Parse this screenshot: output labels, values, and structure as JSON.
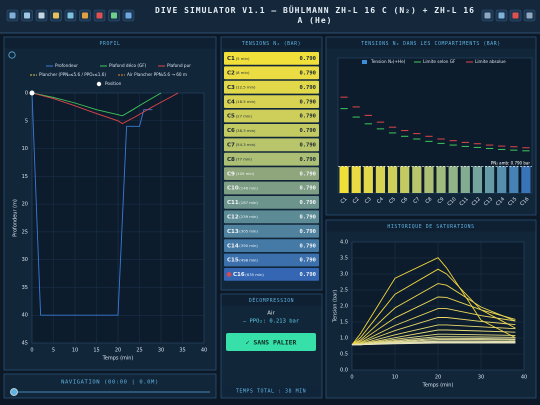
{
  "header": {
    "title": "DIVE SIMULATOR V1.1 — BÜHLMANN ZH-L 16 C (N₂) + ZH-L 16 A (He)"
  },
  "navigation": {
    "title": "NAVIGATION (00:00 | 0.0M)"
  },
  "tensions": {
    "title": "TENSIONS N₂ (BAR)",
    "rows": [
      {
        "name": "C1",
        "half_time": "(5 min)",
        "value": "0.790",
        "color": "#f2e03a"
      },
      {
        "name": "C2",
        "half_time": "(8 min)",
        "value": "0.790",
        "color": "#eadc42"
      },
      {
        "name": "C3",
        "half_time": "(12.5 min)",
        "value": "0.790",
        "color": "#e1d84a"
      },
      {
        "name": "C4",
        "half_time": "(18.5 min)",
        "value": "0.790",
        "color": "#d8d352"
      },
      {
        "name": "C5",
        "half_time": "(27 min)",
        "value": "0.790",
        "color": "#cecf5a"
      },
      {
        "name": "C6",
        "half_time": "(38.3 min)",
        "value": "0.790",
        "color": "#c3ca62"
      },
      {
        "name": "C7",
        "half_time": "(54.3 min)",
        "value": "0.790",
        "color": "#b8c56b"
      },
      {
        "name": "C8",
        "half_time": "(77 min)",
        "value": "0.790",
        "color": "#acbf74"
      },
      {
        "name": "C9",
        "half_time": "(109 min)",
        "value": "0.790",
        "color": "#8fa57c"
      },
      {
        "name": "C10",
        "half_time": "(146 min)",
        "value": "0.790",
        "color": "#7d9d84"
      },
      {
        "name": "C11",
        "half_time": "(187 min)",
        "value": "0.790",
        "color": "#6c948c"
      },
      {
        "name": "C12",
        "half_time": "(239 min)",
        "value": "0.790",
        "color": "#5d8b95"
      },
      {
        "name": "C13",
        "half_time": "(305 min)",
        "value": "0.790",
        "color": "#50829e"
      },
      {
        "name": "C14",
        "half_time": "(390 min)",
        "value": "0.790",
        "color": "#4579a6"
      },
      {
        "name": "C15",
        "half_time": "(498 min)",
        "value": "0.790",
        "color": "#3c70ad"
      },
      {
        "name": "C16",
        "half_time": "(635 min)",
        "value": "0.790",
        "color": "#3466b4",
        "marked": true
      }
    ]
  },
  "decompression": {
    "title": "DÉCOMPRESSION",
    "gas": "Air",
    "ppo2": "— PPO₂: 0.213 bar",
    "button": "✓ SANS PALIER",
    "total": "TEMPS TOTAL : 38 MIN"
  },
  "chart_data": [
    {
      "type": "line",
      "title": "PROFIL",
      "xlabel": "Temps (min)",
      "ylabel": "Profondeur (m)",
      "xlim": [
        0,
        40
      ],
      "xticks": [
        0,
        5,
        10,
        15,
        20,
        25,
        30,
        35,
        40
      ],
      "ylim": [
        0,
        45
      ],
      "yticks": [
        0,
        5,
        10,
        15,
        20,
        25,
        30,
        35,
        40,
        45
      ],
      "yinvert": true,
      "grid": true,
      "legend": "top",
      "series": [
        {
          "name": "Profondeur",
          "color": "#3a7bd5",
          "x": [
            0,
            2,
            20,
            22,
            25,
            26,
            28
          ],
          "values": [
            0,
            40,
            40,
            6,
            6,
            3,
            3
          ]
        },
        {
          "name": "Plafond déco (GF)",
          "color": "#3ec85a",
          "x": [
            0,
            5,
            10,
            15,
            20,
            21,
            23,
            26,
            30
          ],
          "values": [
            0,
            0.8,
            1.8,
            3,
            3.9,
            4.1,
            3.2,
            1.8,
            0
          ]
        },
        {
          "name": "Plafond pur",
          "color": "#e0454a",
          "x": [
            0,
            5,
            10,
            15,
            20,
            21,
            24,
            28,
            34
          ],
          "values": [
            0,
            1,
            2.3,
            3.7,
            5,
            5.5,
            4.3,
            2.5,
            0
          ]
        },
        {
          "name": "Plancher (PPN₂≤5.6 / PPO₂≤1.6)",
          "color": "#e8c040",
          "dash": true,
          "x": [],
          "values": []
        },
        {
          "name": "Air Plancher PPN₂5.6 → 60 m",
          "color": "#e08a30",
          "dash": true,
          "x": [],
          "values": []
        },
        {
          "name": "Position",
          "color": "#ffffff",
          "marker": "dot",
          "x": [
            0
          ],
          "values": [
            0
          ]
        }
      ]
    },
    {
      "type": "bar",
      "title": "TENSIONS N₂ DANS LES COMPARTIMENTS (BAR)",
      "categories": [
        "C1",
        "C2",
        "C3",
        "C4",
        "C5",
        "C6",
        "C7",
        "C8",
        "C9",
        "C10",
        "C11",
        "C12",
        "C13",
        "C14",
        "C15",
        "C16"
      ],
      "ylim": [
        0,
        4
      ],
      "legend": "top",
      "annotation": {
        "text": "PN₂ amb: 0.790 bar",
        "value": 0.79
      },
      "series": [
        {
          "name": "Tension N₂(+He)",
          "style": "bar",
          "color": "#3a8fd8",
          "colors": [
            "#f2e03a",
            "#eadc42",
            "#e1d84a",
            "#d8d352",
            "#cecf5a",
            "#c3ca62",
            "#b8c56b",
            "#acbf74",
            "#9fbb7e",
            "#91b488",
            "#83ac92",
            "#74a49c",
            "#659ba6",
            "#568fae",
            "#4782b4",
            "#3a74b8"
          ],
          "values": [
            0.79,
            0.79,
            0.79,
            0.79,
            0.79,
            0.79,
            0.79,
            0.79,
            0.79,
            0.79,
            0.79,
            0.79,
            0.79,
            0.79,
            0.79,
            0.79
          ]
        },
        {
          "name": "Limite selon GF",
          "style": "tick",
          "color": "#3ec85a",
          "values": [
            2.5,
            2.25,
            2.05,
            1.9,
            1.78,
            1.68,
            1.6,
            1.53,
            1.47,
            1.42,
            1.38,
            1.35,
            1.32,
            1.29,
            1.27,
            1.25
          ]
        },
        {
          "name": "Limite absolue",
          "style": "tick",
          "color": "#e0454a",
          "values": [
            2.84,
            2.55,
            2.3,
            2.1,
            1.95,
            1.85,
            1.76,
            1.68,
            1.6,
            1.55,
            1.5,
            1.46,
            1.42,
            1.39,
            1.37,
            1.34
          ]
        }
      ]
    },
    {
      "type": "line",
      "title": "HISTORIQUE DE SATURATIONS",
      "xlabel": "Temps (min)",
      "ylabel": "Tension (bar)",
      "xlim": [
        0,
        40
      ],
      "xticks": [
        0,
        10,
        20,
        30,
        40
      ],
      "ylim": [
        0,
        4
      ],
      "yticks": [
        {
          "value": 0,
          "label": "0.0"
        },
        0.5,
        {
          "value": 1,
          "label": "1.0"
        },
        1.5,
        {
          "value": 2,
          "label": "2.0"
        },
        2.5,
        {
          "value": 3,
          "label": "3.0"
        },
        3.5,
        {
          "value": 4,
          "label": "4.0"
        }
      ],
      "grid": true,
      "x": [
        0,
        2,
        10,
        20,
        22,
        30,
        38
      ],
      "series": [
        {
          "color": "#f2d43a",
          "values": [
            0.79,
            1.14,
            2.87,
            3.51,
            3.19,
            1.56,
            1.01
          ]
        },
        {
          "color": "#f0d543",
          "values": [
            0.79,
            1.02,
            2.37,
            3.15,
            3.0,
            1.88,
            1.31
          ]
        },
        {
          "color": "#eed64c",
          "values": [
            0.79,
            0.94,
            1.94,
            2.7,
            2.65,
            1.97,
            1.53
          ]
        },
        {
          "color": "#ecd755",
          "values": [
            0.79,
            0.9,
            1.63,
            2.28,
            2.27,
            1.88,
            1.58
          ]
        },
        {
          "color": "#ebd85e",
          "values": [
            0.79,
            0.86,
            1.39,
            1.92,
            1.92,
            1.7,
            1.53
          ]
        },
        {
          "color": "#e9d967",
          "values": [
            0.79,
            0.84,
            1.23,
            1.64,
            1.64,
            1.52,
            1.42
          ]
        },
        {
          "color": "#e8da70",
          "values": [
            0.79,
            0.82,
            1.1,
            1.41,
            1.41,
            1.35,
            1.29
          ]
        },
        {
          "color": "#e7db79",
          "values": [
            0.79,
            0.81,
            1.01,
            1.25,
            1.25,
            1.22,
            1.18
          ]
        },
        {
          "color": "#e6dc82",
          "values": [
            0.79,
            0.8,
            0.96,
            1.12,
            1.12,
            1.1,
            1.08
          ]
        },
        {
          "color": "#e5dd8b",
          "values": [
            0.79,
            0.8,
            0.92,
            1.04,
            1.04,
            1.03,
            1.02
          ]
        },
        {
          "color": "#e4de94",
          "values": [
            0.79,
            0.79,
            0.89,
            0.99,
            0.99,
            0.98,
            0.97
          ]
        },
        {
          "color": "#e4df9d",
          "values": [
            0.79,
            0.79,
            0.87,
            0.95,
            0.95,
            0.95,
            0.94
          ]
        },
        {
          "color": "#e4e0a6",
          "values": [
            0.79,
            0.79,
            0.85,
            0.91,
            0.91,
            0.91,
            0.9
          ]
        },
        {
          "color": "#e4e1af",
          "values": [
            0.79,
            0.79,
            0.84,
            0.88,
            0.88,
            0.88,
            0.88
          ]
        },
        {
          "color": "#e4e2b8",
          "values": [
            0.79,
            0.79,
            0.83,
            0.86,
            0.86,
            0.86,
            0.86
          ]
        },
        {
          "color": "#e4e3c1",
          "values": [
            0.79,
            0.79,
            0.82,
            0.84,
            0.84,
            0.84,
            0.84
          ]
        }
      ]
    }
  ]
}
